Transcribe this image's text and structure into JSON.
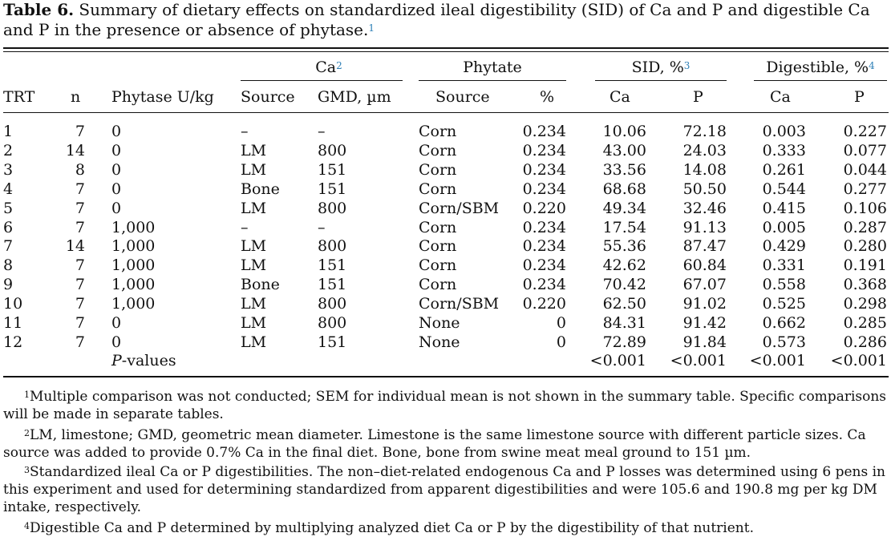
{
  "caption": {
    "label": "Table 6.",
    "text": " Summary of dietary effects on standardized ileal digestibility (SID) of Ca and P and digestible Ca and P in the presence or absence of phytase.",
    "footnote_ref": "1"
  },
  "header": {
    "groups": {
      "ca": "Ca",
      "ca_ref": "2",
      "phytate": "Phytate",
      "sid": "SID, %",
      "sid_ref": "3",
      "digestible": "Digestible, %",
      "digestible_ref": "4"
    },
    "columns": [
      "TRT",
      "n",
      "Phytase U/kg",
      "Source",
      "GMD, µm",
      "Source",
      "%",
      "Ca",
      "P",
      "Ca",
      "P"
    ]
  },
  "rows": [
    [
      "1",
      "7",
      "0",
      "–",
      "–",
      "Corn",
      "0.234",
      "10.06",
      "72.18",
      "0.003",
      "0.227"
    ],
    [
      "2",
      "14",
      "0",
      "LM",
      "800",
      "Corn",
      "0.234",
      "43.00",
      "24.03",
      "0.333",
      "0.077"
    ],
    [
      "3",
      "8",
      "0",
      "LM",
      "151",
      "Corn",
      "0.234",
      "33.56",
      "14.08",
      "0.261",
      "0.044"
    ],
    [
      "4",
      "7",
      "0",
      "Bone",
      "151",
      "Corn",
      "0.234",
      "68.68",
      "50.50",
      "0.544",
      "0.277"
    ],
    [
      "5",
      "7",
      "0",
      "LM",
      "800",
      "Corn/SBM",
      "0.220",
      "49.34",
      "32.46",
      "0.415",
      "0.106"
    ],
    [
      "6",
      "7",
      "1,000",
      "–",
      "–",
      "Corn",
      "0.234",
      "17.54",
      "91.13",
      "0.005",
      "0.287"
    ],
    [
      "7",
      "14",
      "1,000",
      "LM",
      "800",
      "Corn",
      "0.234",
      "55.36",
      "87.47",
      "0.429",
      "0.280"
    ],
    [
      "8",
      "7",
      "1,000",
      "LM",
      "151",
      "Corn",
      "0.234",
      "42.62",
      "60.84",
      "0.331",
      "0.191"
    ],
    [
      "9",
      "7",
      "1,000",
      "Bone",
      "151",
      "Corn",
      "0.234",
      "70.42",
      "67.07",
      "0.558",
      "0.368"
    ],
    [
      "10",
      "7",
      "1,000",
      "LM",
      "800",
      "Corn/SBM",
      "0.220",
      "62.50",
      "91.02",
      "0.525",
      "0.298"
    ],
    [
      "11",
      "7",
      "0",
      "LM",
      "800",
      "None",
      "0",
      "84.31",
      "91.42",
      "0.662",
      "0.285"
    ],
    [
      "12",
      "7",
      "0",
      "LM",
      "151",
      "None",
      "0",
      "72.89",
      "91.84",
      "0.573",
      "0.286"
    ]
  ],
  "pvalues": {
    "label_italic": "P",
    "label_rest": "-values",
    "values": [
      "<0.001",
      "<0.001",
      "<0.001",
      "<0.001"
    ]
  },
  "footnotes": [
    {
      "mark": "1",
      "text": "Multiple comparison was not conducted; SEM for individual mean is not shown in the summary table. Specific comparisons will be made in separate tables."
    },
    {
      "mark": "2",
      "text": "LM, limestone; GMD, geometric mean diameter. Limestone is the same limestone source with different particle sizes. Ca source was added to provide 0.7% Ca in the final diet. Bone, bone from swine meat meal ground to 151 µm."
    },
    {
      "mark": "3",
      "text": "Standardized ileal Ca or P digestibilities. The non–diet-related endogenous Ca and P losses was determined using 6 pens in this experiment and used for determining standardized from apparent digestibilities and were 105.6 and 190.8 mg per kg DM intake, respectively."
    },
    {
      "mark": "4",
      "text": "Digestible Ca and P determined by multiplying analyzed diet Ca or P by the digestibility of that nutrient."
    }
  ]
}
